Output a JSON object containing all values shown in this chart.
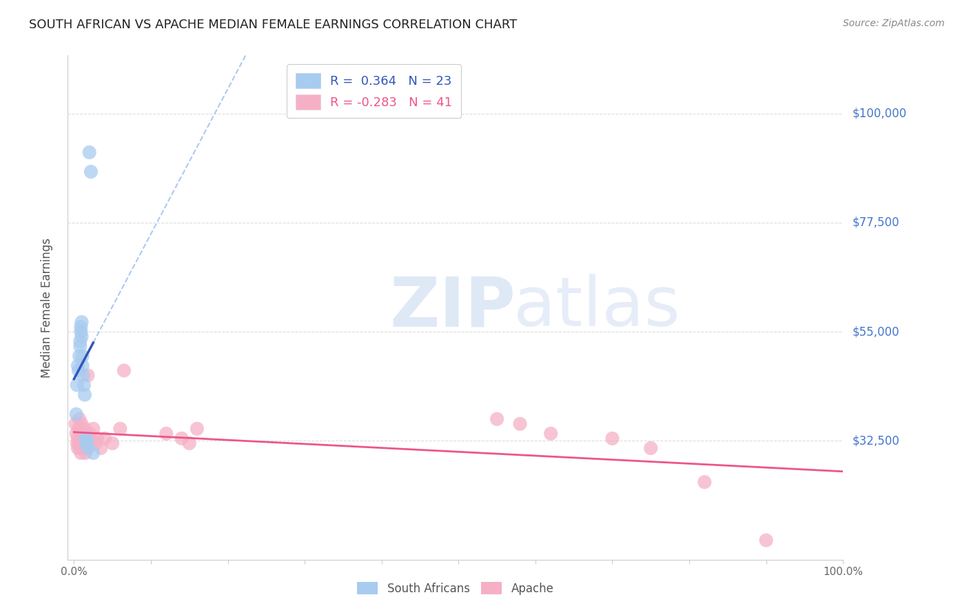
{
  "title": "SOUTH AFRICAN VS APACHE MEDIAN FEMALE EARNINGS CORRELATION CHART",
  "source": "Source: ZipAtlas.com",
  "ylabel": "Median Female Earnings",
  "xlim": [
    -0.008,
    1.0
  ],
  "ylim": [
    8000,
    112000
  ],
  "yticks": [
    32500,
    55000,
    77500,
    100000
  ],
  "ytick_labels": [
    "$32,500",
    "$55,000",
    "$77,500",
    "$100,000"
  ],
  "xticks": [
    0.0,
    0.1,
    0.2,
    0.3,
    0.4,
    0.5,
    0.6,
    0.7,
    0.8,
    0.9,
    1.0
  ],
  "legend1_label": "R =  0.364   N = 23",
  "legend2_label": "R = -0.283   N = 41",
  "blue_scatter_color": "#A8CBF0",
  "pink_scatter_color": "#F5B0C5",
  "blue_line_color": "#3355BB",
  "pink_line_color": "#EE5588",
  "blue_dash_color": "#99BBEE",
  "grid_color": "#DDDDDD",
  "right_label_color": "#4477CC",
  "background_color": "#FFFFFF",
  "title_fontsize": 13,
  "legend_fontsize": 13,
  "south_africans_x": [
    0.003,
    0.004,
    0.005,
    0.006,
    0.007,
    0.008,
    0.008,
    0.009,
    0.009,
    0.01,
    0.01,
    0.011,
    0.011,
    0.012,
    0.013,
    0.014,
    0.015,
    0.016,
    0.017,
    0.018,
    0.02,
    0.022,
    0.025
  ],
  "south_africans_y": [
    38000,
    44000,
    48000,
    47000,
    50000,
    52000,
    53000,
    55000,
    56000,
    57000,
    54000,
    50000,
    48000,
    46000,
    44000,
    42000,
    33000,
    32000,
    32500,
    31000,
    92000,
    88000,
    30000
  ],
  "apache_x": [
    0.002,
    0.003,
    0.004,
    0.005,
    0.005,
    0.006,
    0.007,
    0.007,
    0.008,
    0.009,
    0.009,
    0.01,
    0.011,
    0.012,
    0.013,
    0.014,
    0.015,
    0.016,
    0.017,
    0.018,
    0.02,
    0.022,
    0.025,
    0.028,
    0.03,
    0.035,
    0.04,
    0.05,
    0.06,
    0.065,
    0.12,
    0.14,
    0.15,
    0.16,
    0.55,
    0.58,
    0.62,
    0.7,
    0.75,
    0.82,
    0.9
  ],
  "apache_y": [
    36000,
    34000,
    32000,
    31000,
    33000,
    35000,
    37000,
    32000,
    31000,
    30000,
    34000,
    36000,
    32000,
    31000,
    33000,
    35000,
    30000,
    32000,
    31000,
    46000,
    34000,
    33000,
    35000,
    32000,
    33000,
    31000,
    33000,
    32000,
    35000,
    47000,
    34000,
    33000,
    32000,
    35000,
    37000,
    36000,
    34000,
    33000,
    31000,
    24000,
    12000
  ],
  "blue_trend_x_start": 0.0,
  "blue_trend_x_solid_end": 0.025,
  "blue_trend_x_dash_end": 0.5,
  "pink_trend_x_start": 0.0,
  "pink_trend_x_end": 1.0
}
